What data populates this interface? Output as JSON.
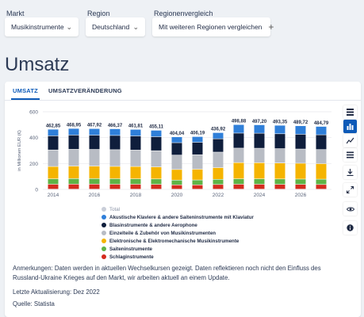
{
  "filters": {
    "markt": {
      "label": "Markt",
      "value": "Musikinstrumente"
    },
    "region": {
      "label": "Region",
      "value": "Deutschland"
    },
    "vergleich": {
      "label": "Regionenvergleich",
      "value": "Mit weiteren Regionen vergleichen"
    }
  },
  "page": {
    "title": "Umsatz"
  },
  "tabs": [
    {
      "label": "UMSATZ",
      "active": true
    },
    {
      "label": "UMSATZVERÄNDERUNG",
      "active": false
    }
  ],
  "chart_data": {
    "type": "bar",
    "stacked": true,
    "ylabel": "in Millionen EUR (€)",
    "ylim": [
      0,
      600
    ],
    "yticks": [
      0,
      200,
      400,
      600
    ],
    "categories": [
      2014,
      2015,
      2016,
      2017,
      2018,
      2019,
      2020,
      2021,
      2022,
      2023,
      2024,
      2025,
      2026,
      2027
    ],
    "xtick_labels": [
      "2014",
      "",
      "2016",
      "",
      "2018",
      "",
      "2020",
      "",
      "2022",
      "",
      "2024",
      "",
      "2026",
      ""
    ],
    "totals": [
      "462,85",
      "468,95",
      "467,92",
      "466,37",
      "461,81",
      "455,11",
      "404,04",
      "406,19",
      "436,92",
      "498,88",
      "497,20",
      "493,35",
      "489,72",
      "484,79"
    ],
    "total_values": [
      462.85,
      468.95,
      467.92,
      466.37,
      461.81,
      455.11,
      404.04,
      406.19,
      436.92,
      498.88,
      497.2,
      493.35,
      489.72,
      484.79
    ],
    "forecast_from_index": 9,
    "series": [
      {
        "name": "Schlaginstrumente",
        "color": "#d42b1e",
        "values": [
          38,
          39,
          39,
          38,
          38,
          37,
          33,
          33,
          36,
          38,
          38,
          37,
          37,
          36
        ]
      },
      {
        "name": "Saiteninstrumente",
        "color": "#5fb446",
        "values": [
          42,
          43,
          43,
          43,
          42,
          42,
          37,
          38,
          40,
          42,
          42,
          42,
          41,
          41
        ]
      },
      {
        "name": "Elektronische & Elektromechanische Musikinstrumente",
        "color": "#f5b400",
        "values": [
          95,
          96,
          96,
          95,
          95,
          93,
          82,
          83,
          90,
          125,
          124,
          123,
          122,
          120
        ]
      },
      {
        "name": "Einzelteile & Zubehör von Musikinstrumenten",
        "color": "#b8bcc4",
        "values": [
          128,
          130,
          129,
          129,
          127,
          125,
          111,
          112,
          120,
          112,
          112,
          111,
          110,
          109
        ]
      },
      {
        "name": "Blasinstrumente & andere Aerophone",
        "color": "#0f1e3c",
        "values": [
          109,
          110,
          110,
          110,
          109,
          108,
          96,
          96,
          103,
          116,
          116,
          115,
          114,
          114
        ]
      },
      {
        "name": "Akustische Klaviere & andere Saiteninstrumente mit Klaviatur",
        "color": "#2f7fd9",
        "values": [
          50.85,
          50.95,
          50.92,
          51.37,
          50.81,
          50.11,
          45.04,
          44.19,
          47.92,
          65.88,
          65.2,
          65.35,
          65.72,
          64.79
        ]
      }
    ]
  },
  "legend": {
    "total_label": "Total",
    "items": [
      {
        "label": "Akustische Klaviere & andere Saiteninstrumente mit Klaviatur",
        "color": "#2f7fd9"
      },
      {
        "label": "Blasinstrumente & andere Aerophone",
        "color": "#0f1e3c"
      },
      {
        "label": "Einzelteile & Zubehör von Musikinstrumenten",
        "color": "#b8bcc4"
      },
      {
        "label": "Elektronische & Elektromechanische Musikinstrumente",
        "color": "#f5b400"
      },
      {
        "label": "Saiteninstrumente",
        "color": "#5fb446"
      },
      {
        "label": "Schlaginstrumente",
        "color": "#d42b1e"
      }
    ]
  },
  "notes": {
    "anmerkungen": "Anmerkungen: Daten werden in aktuellen Wechselkursen gezeigt. Daten reflektieren noch nicht den Einfluss des Russland-Ukraine Krieges auf den Markt, wir arbeiten aktuell an einem Update.",
    "aktualisierung": "Letzte Aktualisierung: Dez 2022",
    "quelle": "Quelle: Statista"
  },
  "sidebar": {
    "icons": [
      "table-icon",
      "bar-chart-icon",
      "line-chart-icon",
      "list-icon",
      "download-icon",
      "expand-icon",
      "eye-icon",
      "info-icon"
    ]
  }
}
